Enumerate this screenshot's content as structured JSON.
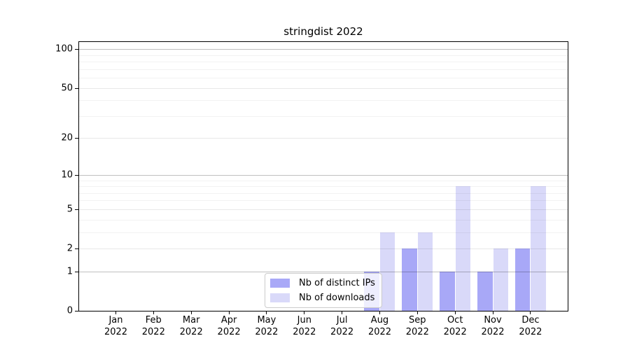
{
  "chart_data": {
    "type": "bar",
    "title": "stringdist 2022",
    "x": [
      {
        "month": "Jan",
        "year": "2022"
      },
      {
        "month": "Feb",
        "year": "2022"
      },
      {
        "month": "Mar",
        "year": "2022"
      },
      {
        "month": "Apr",
        "year": "2022"
      },
      {
        "month": "May",
        "year": "2022"
      },
      {
        "month": "Jun",
        "year": "2022"
      },
      {
        "month": "Jul",
        "year": "2022"
      },
      {
        "month": "Aug",
        "year": "2022"
      },
      {
        "month": "Sep",
        "year": "2022"
      },
      {
        "month": "Oct",
        "year": "2022"
      },
      {
        "month": "Nov",
        "year": "2022"
      },
      {
        "month": "Dec",
        "year": "2022"
      }
    ],
    "series": [
      {
        "name": "Nb of distinct IPs",
        "key": "ips",
        "color": "#a8a8f7",
        "values": [
          0,
          0,
          0,
          0,
          0,
          0,
          0,
          1,
          2,
          1,
          1,
          2
        ]
      },
      {
        "name": "Nb of downloads",
        "key": "downloads",
        "color": "#d9d9f9",
        "values": [
          0,
          0,
          0,
          0,
          0,
          0,
          0,
          3,
          3,
          8,
          2,
          8
        ]
      }
    ],
    "y_axis": {
      "scale": "log1p",
      "ticks": [
        0,
        1,
        2,
        5,
        10,
        20,
        50,
        100
      ],
      "decade_gridlines": [
        1,
        10,
        100
      ],
      "minor_gridlines": [
        3,
        4,
        6,
        7,
        8,
        9,
        30,
        40,
        60,
        70,
        80,
        90
      ],
      "range": [
        0,
        115
      ],
      "grid": "on"
    },
    "legend": {
      "position": "inside-bottom-center",
      "entries": [
        "Nb of distinct IPs",
        "Nb of downloads"
      ]
    }
  }
}
